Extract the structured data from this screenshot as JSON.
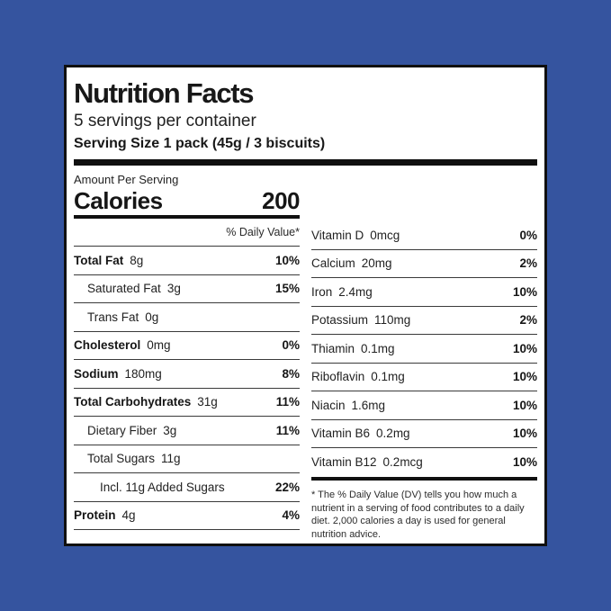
{
  "colors": {
    "background": "#35549f",
    "panel": "#ffffff",
    "ink": "#101010"
  },
  "label": {
    "title": "Nutrition Facts",
    "servings_per_container": "5 servings per container",
    "serving_size": "Serving Size 1 pack (45g / 3 biscuits)",
    "amount_per_serving": "Amount Per Serving",
    "calories_label": "Calories",
    "calories_value": "200",
    "daily_value_header": "% Daily Value*",
    "footnote": "* The % Daily Value (DV) tells you how much a nutrient in a serving of food contributes to a daily diet. 2,000 calories a day is used for general nutrition advice."
  },
  "left_rows": [
    {
      "name": "Total Fat",
      "amount": "8g",
      "pct": "10%"
    },
    {
      "name": "Saturated Fat",
      "amount": "3g",
      "pct": "15%"
    },
    {
      "name": "Trans Fat",
      "amount": "0g",
      "pct": ""
    },
    {
      "name": "Cholesterol",
      "amount": "0mg",
      "pct": "0%"
    },
    {
      "name": "Sodium",
      "amount": "180mg",
      "pct": "8%"
    },
    {
      "name": "Total Carbohydrates",
      "amount": "31g",
      "pct": "11%"
    },
    {
      "name": "Dietary Fiber",
      "amount": "3g",
      "pct": "11%"
    },
    {
      "name": "Total Sugars",
      "amount": "11g",
      "pct": ""
    },
    {
      "name": "Incl. 11g Added Sugars",
      "amount": "",
      "pct": "22%"
    },
    {
      "name": "Protein",
      "amount": "4g",
      "pct": "4%"
    }
  ],
  "right_rows": [
    {
      "name": "Vitamin D",
      "amount": "0mcg",
      "pct": "0%"
    },
    {
      "name": "Calcium",
      "amount": "20mg",
      "pct": "2%"
    },
    {
      "name": "Iron",
      "amount": "2.4mg",
      "pct": "10%"
    },
    {
      "name": "Potassium",
      "amount": "110mg",
      "pct": "2%"
    },
    {
      "name": "Thiamin",
      "amount": "0.1mg",
      "pct": "10%"
    },
    {
      "name": "Riboflavin",
      "amount": "0.1mg",
      "pct": "10%"
    },
    {
      "name": "Niacin",
      "amount": "1.6mg",
      "pct": "10%"
    },
    {
      "name": "Vitamin B6",
      "amount": "0.2mg",
      "pct": "10%"
    },
    {
      "name": "Vitamin B12",
      "amount": "0.2mcg",
      "pct": "10%"
    }
  ]
}
